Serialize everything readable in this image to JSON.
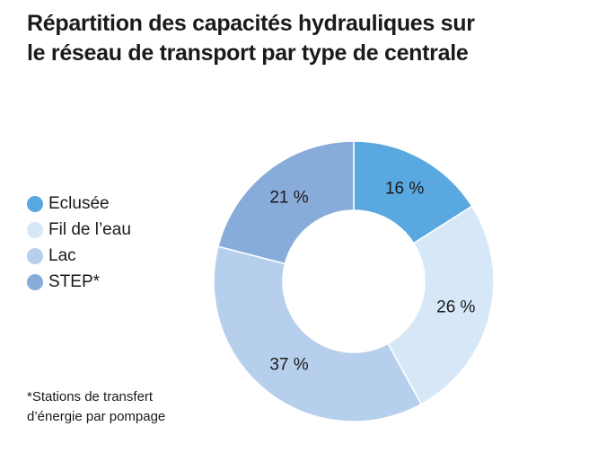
{
  "title": {
    "line1": "Répartition des capacités hydrauliques sur",
    "line2": "le réseau de transport par type de centrale"
  },
  "footnote": {
    "line1": "*Stations de transfert",
    "line2": "d’énergie par pompage"
  },
  "chart_data": {
    "type": "pie",
    "variant": "donut",
    "title": "Répartition des capacités hydrauliques sur le réseau de transport par type de centrale",
    "categories": [
      "Eclusée",
      "Fil de l’eau",
      "Lac",
      "STEP*"
    ],
    "values": [
      16,
      26,
      37,
      21
    ],
    "labels": [
      "16 %",
      "26 %",
      "37 %",
      "21 %"
    ],
    "unit": "%",
    "colors": [
      "#5aa8e0",
      "#d6e8f8",
      "#b6cfec",
      "#88acd9"
    ],
    "legend_position": "left",
    "start_angle_deg": 0,
    "direction": "clockwise"
  }
}
